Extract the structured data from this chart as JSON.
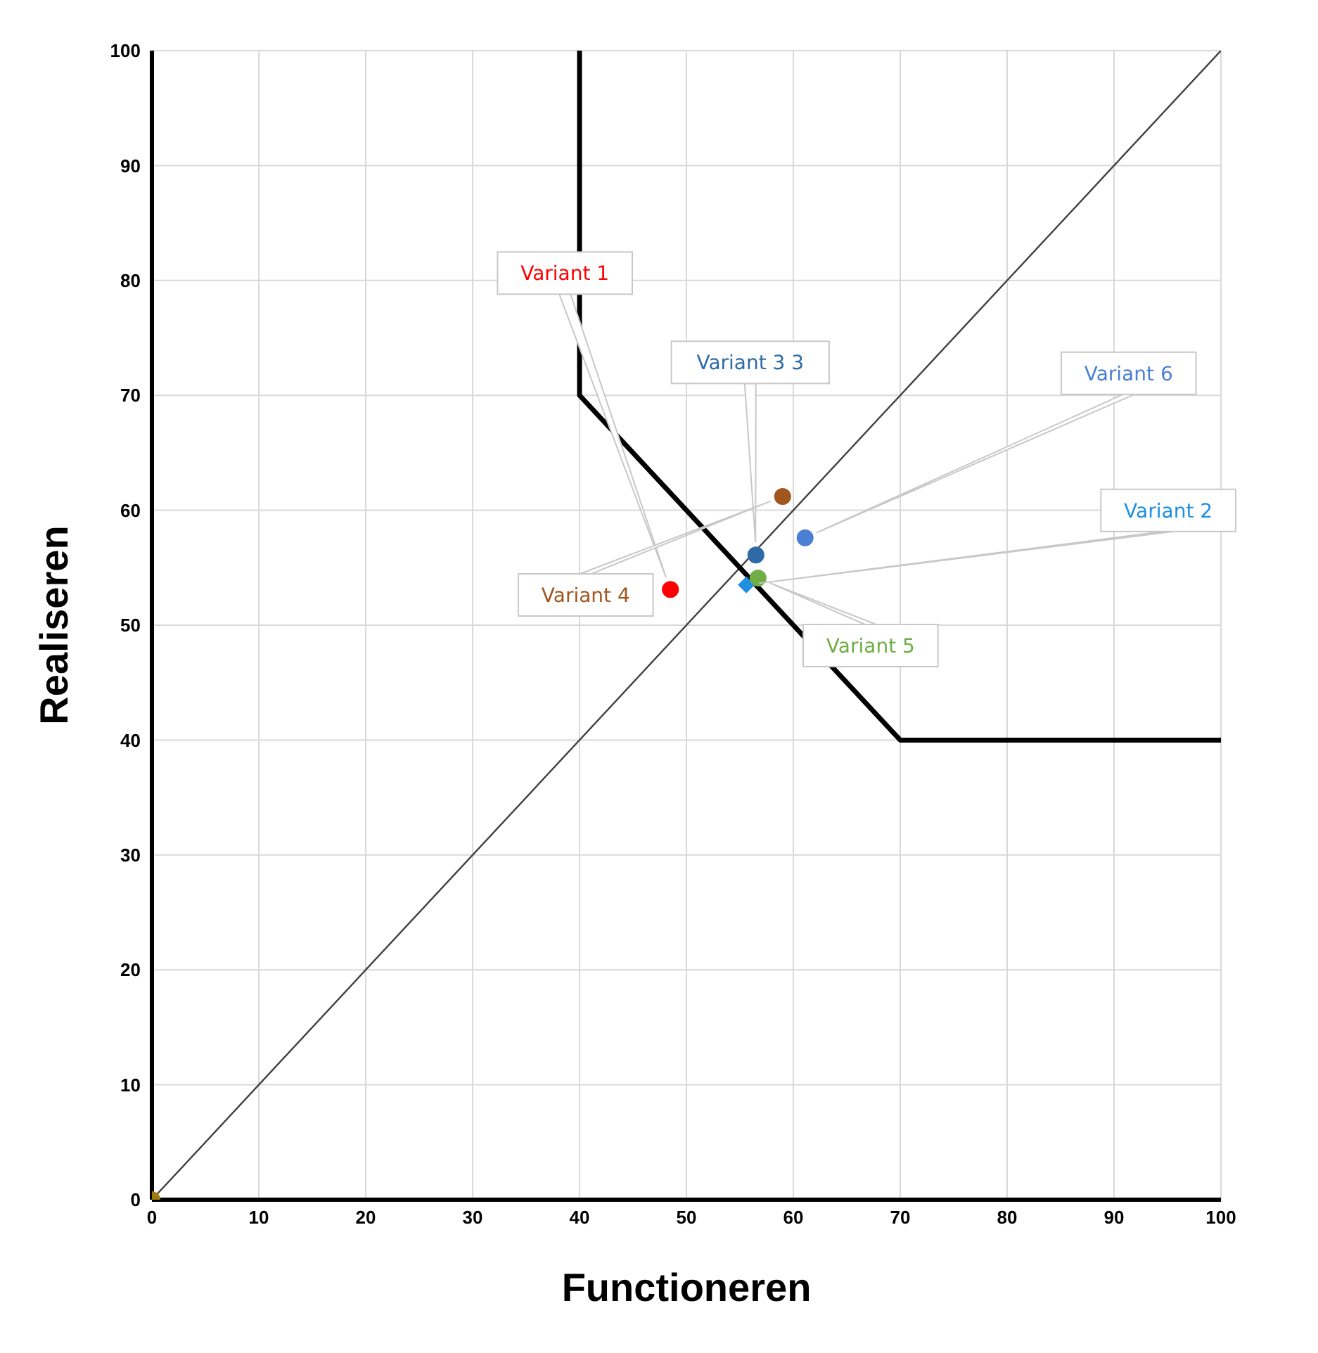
{
  "chart_data": {
    "type": "scatter",
    "xlabel": "Functioneren",
    "ylabel": "Realiseren",
    "xlim": [
      0,
      100
    ],
    "ylim": [
      0,
      100
    ],
    "xticks": [
      0,
      10,
      20,
      30,
      40,
      50,
      60,
      70,
      80,
      90,
      100
    ],
    "yticks": [
      0,
      10,
      20,
      30,
      40,
      50,
      60,
      70,
      80,
      90,
      100
    ],
    "grid": true,
    "legend": false,
    "series": [
      {
        "type": "line",
        "color": "#404040",
        "x": [
          0,
          100
        ],
        "values": [
          0,
          100
        ],
        "marker": "none"
      },
      {
        "type": "line",
        "color": "#000000",
        "x": [
          40,
          40,
          70,
          100
        ],
        "values": [
          100,
          70,
          40,
          40
        ],
        "marker": "none"
      },
      {
        "color": "#a07c10",
        "x": [
          0
        ],
        "values": [
          0
        ],
        "marker": "circle"
      },
      {
        "name": "Variant 1",
        "color": "#ff0000",
        "x": [
          48.5
        ],
        "values": [
          53.1
        ],
        "marker": "circle"
      },
      {
        "name": "Variant 2",
        "color": "#1f8fe0",
        "x": [
          55.6
        ],
        "values": [
          53.5
        ],
        "marker": "diamond"
      },
      {
        "name": "Variant 3 3",
        "color": "#2e6ba6",
        "x": [
          56.5
        ],
        "values": [
          56.1
        ],
        "marker": "circle"
      },
      {
        "name": "Variant 4",
        "color": "#a0561e",
        "x": [
          59
        ],
        "values": [
          61.2
        ],
        "marker": "circle"
      },
      {
        "name": "Variant 5",
        "color": "#70ad47",
        "x": [
          56.7
        ],
        "values": [
          54.1
        ],
        "marker": "circle"
      },
      {
        "name": "Variant 6",
        "color": "#4a7fd4",
        "x": [
          61.1
        ],
        "values": [
          57.6
        ],
        "marker": "circle"
      }
    ]
  }
}
